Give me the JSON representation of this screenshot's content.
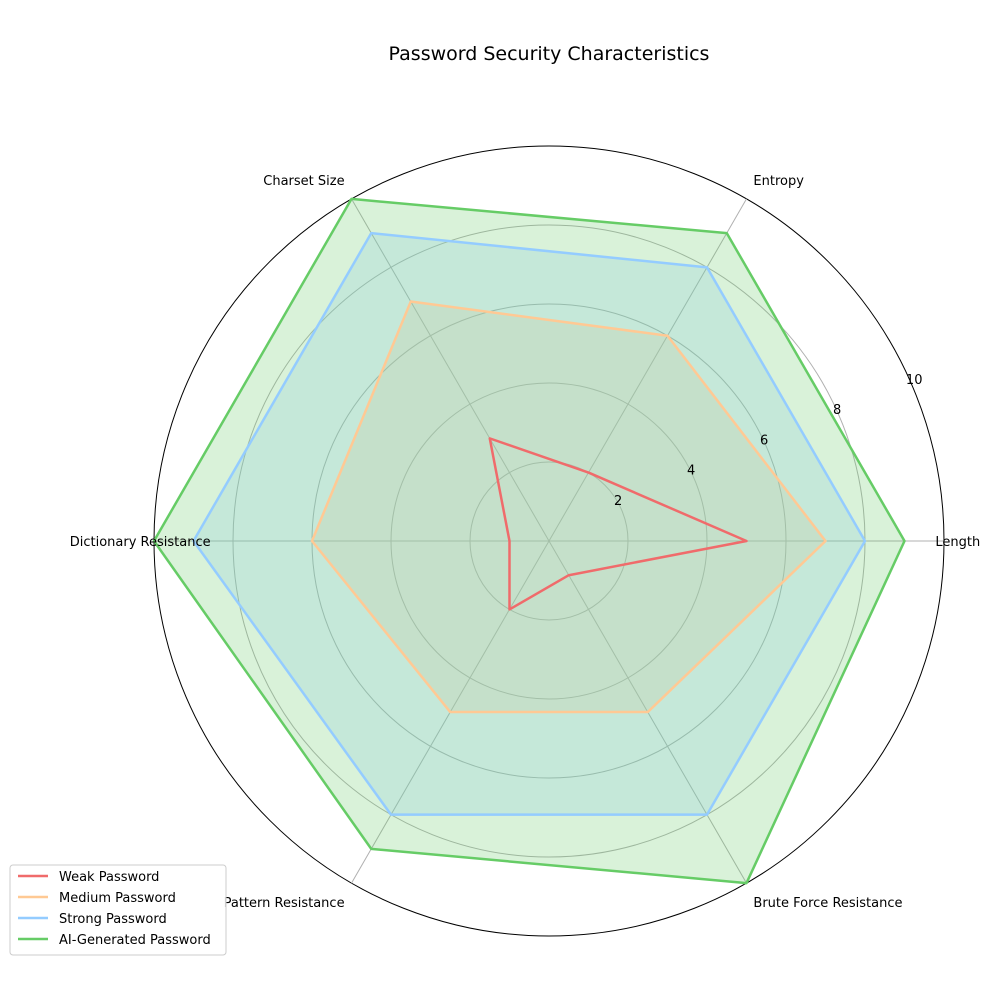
{
  "chart_data": {
    "type": "radar",
    "title": "Password Security Characteristics",
    "axes": [
      "Length",
      "Entropy",
      "Charset Size",
      "Dictionary Resistance",
      "Pattern Resistance",
      "Brute Force Resistance"
    ],
    "rlim": [
      0,
      10
    ],
    "rticks": [
      "2",
      "4",
      "6",
      "8",
      "10"
    ],
    "rtick_values": [
      2,
      4,
      6,
      8,
      10
    ],
    "grid": true,
    "legend_position": "lower-left",
    "series": [
      {
        "name": "Weak Password",
        "values": [
          5,
          2,
          3,
          1,
          2,
          1
        ],
        "color": "#f06b6b",
        "fill": false
      },
      {
        "name": "Medium Password",
        "values": [
          7,
          6,
          7,
          6,
          5,
          5
        ],
        "color": "#ffc994",
        "fill": true
      },
      {
        "name": "Strong Password",
        "values": [
          8,
          8,
          9,
          9,
          8,
          8
        ],
        "color": "#94ccff",
        "fill": true
      },
      {
        "name": "AI-Generated Password",
        "values": [
          9,
          9,
          10,
          10,
          9,
          10
        ],
        "color": "#66cc66",
        "fill": true
      }
    ]
  }
}
